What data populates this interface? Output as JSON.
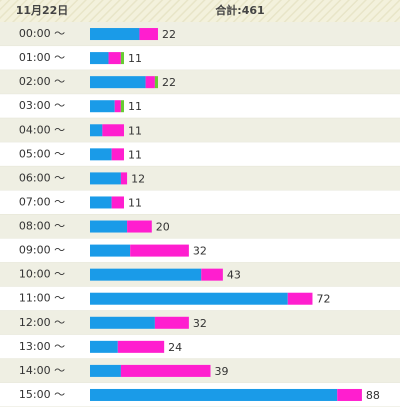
{
  "chart_data": {
    "type": "bar",
    "orientation": "horizontal",
    "stacked": true,
    "date_label": "11月22日",
    "total_label": "合計:461",
    "categories": [
      "00:00 ～",
      "01:00 ～",
      "02:00 ～",
      "03:00 ～",
      "04:00 ～",
      "05:00 ～",
      "06:00 ～",
      "07:00 ～",
      "08:00 ～",
      "09:00 ～",
      "10:00 ～",
      "11:00 ～",
      "12:00 ～",
      "13:00 ～",
      "14:00 ～",
      "15:00 ～"
    ],
    "series": [
      {
        "color": "#1a9be8",
        "values": [
          16,
          6,
          18,
          8,
          4,
          7,
          10,
          7,
          12,
          13,
          36,
          64,
          21,
          9,
          10,
          80
        ]
      },
      {
        "color": "#ff1ecf",
        "values": [
          6,
          4,
          3,
          2,
          7,
          4,
          2,
          4,
          8,
          19,
          7,
          8,
          11,
          15,
          29,
          8
        ]
      },
      {
        "color": "#66cc33",
        "values": [
          0,
          1,
          1,
          1,
          0,
          0,
          0,
          0,
          0,
          0,
          0,
          0,
          0,
          0,
          0,
          0
        ]
      }
    ],
    "totals": [
      22,
      11,
      22,
      11,
      11,
      11,
      12,
      11,
      20,
      32,
      43,
      72,
      32,
      24,
      39,
      88
    ],
    "xlim": [
      0,
      100
    ]
  }
}
